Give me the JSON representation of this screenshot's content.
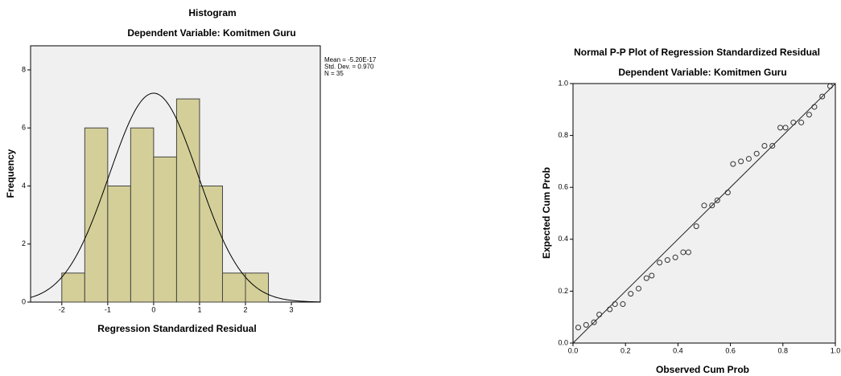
{
  "chart_data": [
    {
      "type": "histogram",
      "title": "Histogram",
      "subtitle": "Dependent Variable: Komitmen Guru",
      "x_label": "Regression Standardized Residual",
      "y_label": "Frequency",
      "bins": [
        -2,
        -1.5,
        -1,
        -0.5,
        0,
        0.5,
        1,
        1.5,
        2,
        2.5
      ],
      "values": [
        1,
        6,
        4,
        6,
        5,
        7,
        4,
        1,
        1
      ],
      "color": "#d4cf98",
      "xlim": [
        -2.68,
        3.63
      ],
      "xticks": [
        -2,
        -1,
        0,
        1,
        2,
        3
      ],
      "ylim": [
        0,
        8.83
      ],
      "yticks": [
        0,
        2,
        4,
        6,
        8
      ],
      "normal_curve": true,
      "stats": [
        {
          "value": -5.2e-17,
          "label": "Mean = -5.20E-17"
        },
        {
          "value": 0.97,
          "label": "Std. Dev. = 0.970"
        },
        {
          "value": 35,
          "label": "N = 35"
        }
      ]
    },
    {
      "type": "scatter",
      "title": "Normal P-P Plot of Regression Standardized Residual",
      "subtitle": "Dependent Variable: Komitmen Guru",
      "x_label": "Observed Cum Prob",
      "y_label": "Expected Cum Prob",
      "x": [
        0.02,
        0.05,
        0.08,
        0.1,
        0.14,
        0.16,
        0.19,
        0.22,
        0.25,
        0.28,
        0.3,
        0.33,
        0.36,
        0.39,
        0.42,
        0.44,
        0.47,
        0.5,
        0.53,
        0.55,
        0.59,
        0.61,
        0.64,
        0.67,
        0.7,
        0.73,
        0.76,
        0.79,
        0.81,
        0.84,
        0.87,
        0.9,
        0.92,
        0.95,
        0.98
      ],
      "values": [
        0.06,
        0.07,
        0.08,
        0.11,
        0.13,
        0.15,
        0.15,
        0.19,
        0.21,
        0.25,
        0.26,
        0.31,
        0.32,
        0.33,
        0.35,
        0.35,
        0.45,
        0.53,
        0.53,
        0.55,
        0.58,
        0.69,
        0.7,
        0.71,
        0.73,
        0.76,
        0.76,
        0.83,
        0.83,
        0.85,
        0.85,
        0.88,
        0.91,
        0.95,
        0.99
      ],
      "color": "#333333",
      "xlim": [
        0,
        1
      ],
      "xticks": [
        {
          "value": 0,
          "label": "0.0"
        },
        0.2,
        0.4,
        0.6,
        0.8,
        {
          "value": 1,
          "label": "1.0"
        }
      ],
      "ylim": [
        0,
        1
      ],
      "yticks": [
        {
          "value": 0,
          "label": "0.0"
        },
        0.2,
        0.4,
        0.6,
        0.8,
        {
          "value": 1,
          "label": "1.0"
        }
      ],
      "reference_line": true
    }
  ]
}
